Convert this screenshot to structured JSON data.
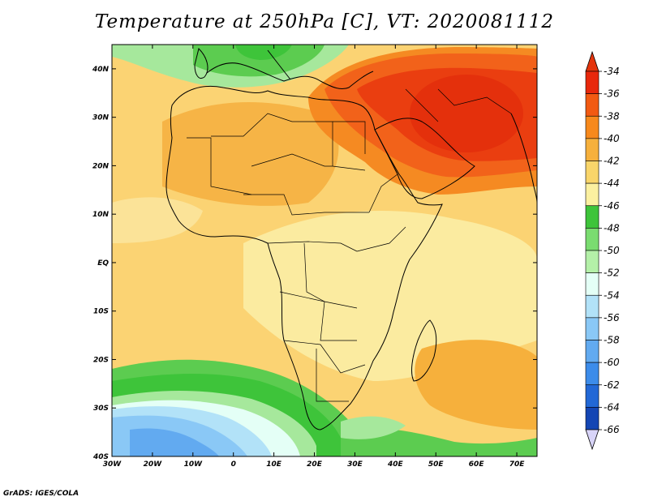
{
  "title": "Temperature at 250hPa [C], VT: 2020081112",
  "credit": "GrADS: IGES/COLA",
  "map": {
    "lat_range": [
      -40,
      45
    ],
    "lon_range": [
      -30,
      75
    ],
    "lat_ticks": [
      "40N",
      "30N",
      "20N",
      "10N",
      "EQ",
      "10S",
      "20S",
      "30S",
      "40S"
    ],
    "lat_tick_values": [
      40,
      30,
      20,
      10,
      0,
      -10,
      -20,
      -30,
      -40
    ],
    "lon_ticks": [
      "30W",
      "20W",
      "10W",
      "0",
      "10E",
      "20E",
      "30E",
      "40E",
      "50E",
      "60E",
      "70E"
    ],
    "lon_tick_values": [
      -30,
      -20,
      -10,
      0,
      10,
      20,
      30,
      40,
      50,
      60,
      70
    ]
  },
  "colorbar": {
    "labels": [
      "-34",
      "-36",
      "-38",
      "-40",
      "-42",
      "-44",
      "-46",
      "-48",
      "-50",
      "-52",
      "-54",
      "-56",
      "-58",
      "-60",
      "-62",
      "-64",
      "-66"
    ],
    "colors": [
      "#e8280c",
      "#f25a12",
      "#f7891c",
      "#f6b03c",
      "#f9d56a",
      "#fbf0a0",
      "#3ec43a",
      "#7adc70",
      "#b4f0a8",
      "#e4fff6",
      "#b2e2f8",
      "#8ac8f6",
      "#62aaf0",
      "#3c8cea",
      "#2268d6",
      "#1446b4",
      "#0c1e78"
    ],
    "top_color": "#e4340c",
    "bottom_color": "#d8d4f8"
  }
}
